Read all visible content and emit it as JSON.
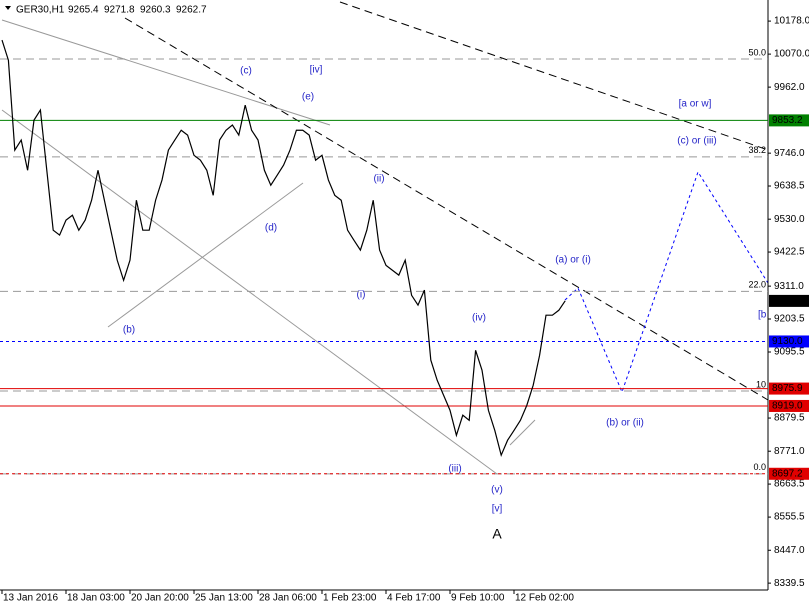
{
  "chart_data": {
    "type": "line",
    "title": "GER30,H1",
    "ohlc": [
      9265.4,
      9271.8,
      9260.3,
      9262.7
    ],
    "categories": [
      "13 Jan 2016",
      null,
      null,
      null,
      null,
      null,
      null,
      null,
      null,
      null,
      "18 Jan 03:00",
      null,
      null,
      null,
      null,
      null,
      null,
      null,
      null,
      null,
      "20 Jan 20:00",
      null,
      null,
      null,
      null,
      null,
      null,
      null,
      null,
      null,
      "25 Jan 13:00",
      null,
      null,
      null,
      null,
      null,
      null,
      null,
      null,
      null,
      "28 Jan 06:00",
      null,
      null,
      null,
      null,
      null,
      null,
      null,
      null,
      null,
      "1 Feb 23:00",
      null,
      null,
      null,
      null,
      null,
      null,
      null,
      null,
      null,
      "4 Feb 17:00",
      null,
      null,
      null,
      null,
      null,
      null,
      null,
      null,
      null,
      "9 Feb 10:00",
      null,
      null,
      null,
      null,
      null,
      null,
      null,
      null,
      null,
      "12 Feb 02:00",
      null,
      null,
      null,
      null,
      null,
      null,
      null,
      null
    ],
    "series": [
      {
        "color": "#000000",
        "values": [
          10116,
          10050,
          9756,
          9789,
          9690,
          9854,
          9887,
          9690,
          9494,
          9478,
          9527,
          9543,
          9494,
          9527,
          9592,
          9690,
          9592,
          9494,
          9396,
          9330,
          9396,
          9592,
          9494,
          9494,
          9592,
          9658,
          9756,
          9789,
          9821,
          9805,
          9739,
          9723,
          9690,
          9608,
          9789,
          9821,
          9838,
          9805,
          9903,
          9821,
          9789,
          9690,
          9641,
          9674,
          9707,
          9756,
          9821,
          9821,
          9805,
          9723,
          9739,
          9658,
          9608,
          9592,
          9494,
          9461,
          9429,
          9494,
          9592,
          9429,
          9379,
          9363,
          9347,
          9396,
          9281,
          9249,
          9298,
          9069,
          9003,
          8954,
          8905,
          8823,
          8889,
          8872,
          9101,
          9036,
          8905,
          8839,
          8758,
          8807,
          8839,
          8872,
          8921,
          8987,
          9085,
          9216,
          9216,
          9232,
          9263
        ]
      }
    ],
    "ylim": [
      8317,
      10247
    ],
    "yticks": [
      {
        "value": 10178,
        "label": "10178.0"
      },
      {
        "value": 10070,
        "label": "10070.0"
      },
      {
        "value": 9962,
        "label": "9962.0"
      },
      {
        "value": 9746,
        "label": "9746.0"
      },
      {
        "value": 9638.5,
        "label": "9638.5"
      },
      {
        "value": 9530,
        "label": "9530.0"
      },
      {
        "value": 9422.5,
        "label": "9422.5"
      },
      {
        "value": 9311,
        "label": "9311.0"
      },
      {
        "value": 9203.5,
        "label": "9203.5"
      },
      {
        "value": 9095.5,
        "label": "9095.5"
      },
      {
        "value": 8879.5,
        "label": "8879.5"
      },
      {
        "value": 8771,
        "label": "8771.0"
      },
      {
        "value": 8663.5,
        "label": "8663.5"
      },
      {
        "value": 8555.5,
        "label": "8555.5"
      },
      {
        "value": 8447,
        "label": "8447.0"
      },
      {
        "value": 8339.5,
        "label": "8339.5"
      }
    ],
    "hlines": [
      {
        "value": 9853.2,
        "label": "9853.2",
        "color": "#008000",
        "dashed": false
      },
      {
        "value": 9130,
        "label": "9130.0",
        "color": "#0000ff",
        "dashed": true
      },
      {
        "value": 8975.9,
        "label": "8975.9",
        "color": "#e00000",
        "dashed": false
      },
      {
        "value": 8919,
        "label": "8919.0",
        "color": "#e00000",
        "dashed": false
      },
      {
        "value": 8697.2,
        "label": "8697.2",
        "color": "#e00000",
        "dashed": true
      }
    ],
    "fib_levels": [
      {
        "value": 10054,
        "label": "50.0"
      },
      {
        "value": 9734,
        "label": "38.2"
      },
      {
        "value": 9294,
        "label": "22.0"
      },
      {
        "value": 8968,
        "label": "10"
      },
      {
        "value": 8697,
        "label": "0.0"
      }
    ],
    "annotations": [
      "(c)",
      "[iv]",
      "(e)",
      "[a or w]",
      "(c) or (iii)",
      "(ii)",
      "(d)",
      "(a) or (i)",
      "(i)",
      "(iv)",
      "(b)",
      "[b",
      "(b) or (ii)",
      "(iii)",
      "(v)",
      "[v]",
      "A"
    ]
  }
}
